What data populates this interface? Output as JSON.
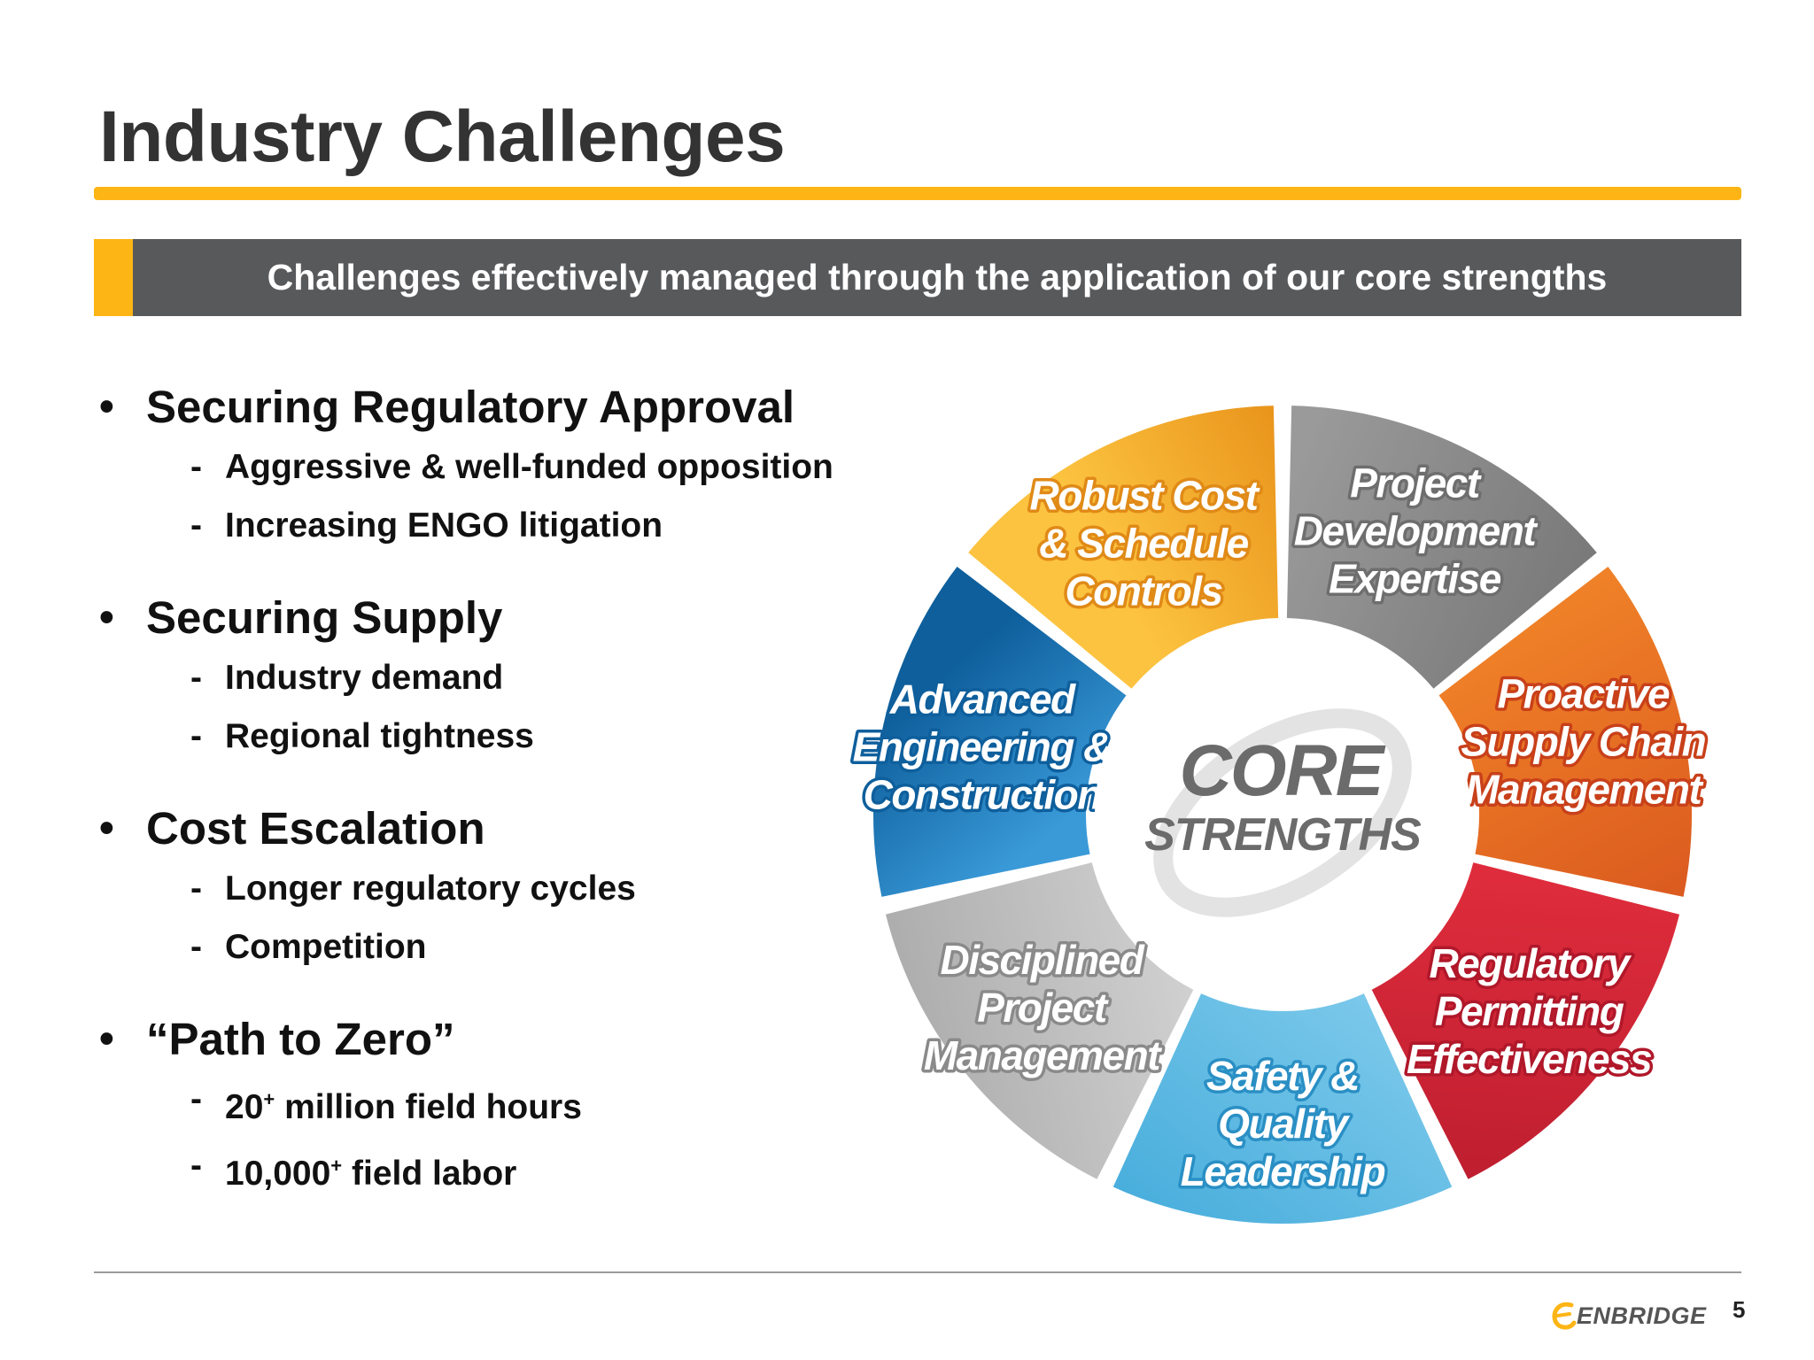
{
  "slide": {
    "title": "Industry Challenges",
    "banner": "Challenges effectively managed through the application of our core strengths",
    "page_number": "5",
    "logo_text": "ENBRIDGE"
  },
  "bullets": [
    {
      "heading": "Securing Regulatory Approval",
      "items": [
        {
          "text": "Aggressive & well-funded opposition"
        },
        {
          "text": "Increasing ENGO litigation"
        }
      ]
    },
    {
      "heading": "Securing Supply",
      "items": [
        {
          "text": "Industry demand"
        },
        {
          "text": "Regional tightness"
        }
      ]
    },
    {
      "heading": "Cost Escalation",
      "items": [
        {
          "text": "Longer regulatory cycles"
        },
        {
          "text": "Competition"
        }
      ]
    },
    {
      "heading": "“Path to Zero”",
      "items": [
        {
          "text": "20",
          "sup": "+",
          "rest": " million field hours"
        },
        {
          "text": "10,000",
          "sup": "+",
          "rest": " field labor"
        }
      ]
    }
  ],
  "wheel": {
    "center_line1": "CORE",
    "center_line2": "STRENGTHS",
    "segments": [
      {
        "name": "project-development-expertise",
        "lines": [
          "Project",
          "Development",
          "Expertise"
        ],
        "color_light": "#9a9a9a",
        "color_dark": "#6e6e6e",
        "outline": "#6e6e6e"
      },
      {
        "name": "proactive-supply-chain-management",
        "lines": [
          "Proactive",
          "Supply Chain",
          "Management"
        ],
        "color_light": "#f58c2a",
        "color_dark": "#d2491b",
        "outline": "#c8401a"
      },
      {
        "name": "regulatory-permitting-effectiveness",
        "lines": [
          "Regulatory",
          "Permitting",
          "Effectiveness"
        ],
        "color_light": "#ee3342",
        "color_dark": "#b0182a",
        "outline": "#b0182a"
      },
      {
        "name": "safety-quality-leadership",
        "lines": [
          "Safety &",
          "Quality",
          "Leadership"
        ],
        "color_light": "#8fd3f0",
        "color_dark": "#3aa6d8",
        "outline": "#2a8fc4"
      },
      {
        "name": "disciplined-project-management",
        "lines": [
          "Disciplined",
          "Project",
          "Management"
        ],
        "color_light": "#d9d9d9",
        "color_dark": "#ababab",
        "outline": "#8a8a8a"
      },
      {
        "name": "advanced-engineering-construction",
        "lines": [
          "Advanced",
          "Engineering &",
          "Construction"
        ],
        "color_light": "#3a9ad8",
        "color_dark": "#0e5f9c",
        "outline": "#0e5f9c"
      },
      {
        "name": "robust-cost-schedule-controls",
        "lines": [
          "Robust Cost",
          "& Schedule",
          "Controls"
        ],
        "color_light": "#fcc340",
        "color_dark": "#e8921a",
        "outline": "#e08a17"
      }
    ]
  },
  "colors": {
    "accent": "#fdb515",
    "banner_bg": "#58595b"
  }
}
